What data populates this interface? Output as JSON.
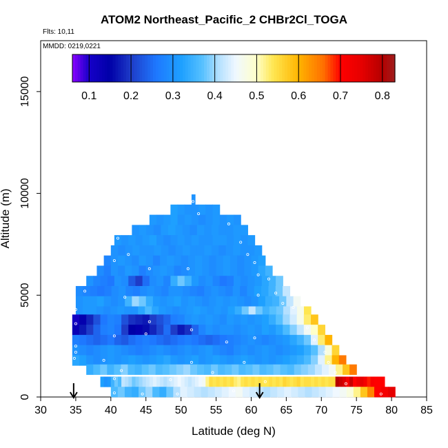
{
  "chart_data": {
    "type": "heatmap",
    "title": "ATOM2 Northeast_Pacific_2 CHBr2Cl_TOGA",
    "flights_label": "Flts: 10,11",
    "dates_label": "MMDD: 0219,0221",
    "xlabel": "Latitude (deg N)",
    "ylabel": "Altitude (m)",
    "xlim": [
      30,
      85
    ],
    "ylim": [
      0,
      17500
    ],
    "x_ticks": [
      30,
      35,
      40,
      45,
      50,
      55,
      60,
      65,
      70,
      75,
      80,
      85
    ],
    "y_ticks": [
      0,
      5000,
      10000,
      15000
    ],
    "colorbar": {
      "range": [
        0.06,
        0.83
      ],
      "ticks": [
        0.1,
        0.2,
        0.3,
        0.4,
        0.5,
        0.6,
        0.7,
        0.8
      ],
      "colors": [
        {
          "v": 0.06,
          "c": "#8a00ff"
        },
        {
          "v": 0.1,
          "c": "#1600c8"
        },
        {
          "v": 0.15,
          "c": "#0000a8"
        },
        {
          "v": 0.2,
          "c": "#1e3cc8"
        },
        {
          "v": 0.26,
          "c": "#1e78ff"
        },
        {
          "v": 0.32,
          "c": "#1ea0ff"
        },
        {
          "v": 0.37,
          "c": "#56c0ff"
        },
        {
          "v": 0.41,
          "c": "#b4e0ff"
        },
        {
          "v": 0.45,
          "c": "#f0f8ff"
        },
        {
          "v": 0.5,
          "c": "#ffffc8"
        },
        {
          "v": 0.54,
          "c": "#ffe650"
        },
        {
          "v": 0.6,
          "c": "#ffb400"
        },
        {
          "v": 0.66,
          "c": "#ff6e00"
        },
        {
          "v": 0.7,
          "c": "#ff0000"
        },
        {
          "v": 0.75,
          "c": "#e60000"
        },
        {
          "v": 0.8,
          "c": "#b40000"
        },
        {
          "v": 0.83,
          "c": "#a01e1e"
        }
      ]
    },
    "bands": [
      {
        "alt": 9700,
        "lat0": 51.5,
        "lat1": 52,
        "v": [
          0.3
        ]
      },
      {
        "alt": 9200,
        "lat0": 48.5,
        "lat1": 55.5,
        "v": [
          0.32,
          0.31,
          0.3,
          0.3,
          0.31,
          0.3,
          0.31
        ]
      },
      {
        "alt": 8700,
        "lat0": 45.5,
        "lat1": 58.5,
        "v": [
          0.31,
          0.3,
          0.31,
          0.32,
          0.3,
          0.31,
          0.3,
          0.29,
          0.3,
          0.31,
          0.3,
          0.31,
          0.3
        ]
      },
      {
        "alt": 8200,
        "lat0": 43,
        "lat1": 59.5,
        "v": [
          0.3,
          0.31,
          0.3,
          0.29,
          0.31,
          0.32,
          0.31,
          0.3,
          0.29,
          0.31,
          0.3,
          0.31,
          0.3,
          0.3,
          0.31,
          0.31
        ]
      },
      {
        "alt": 7700,
        "lat0": 40.5,
        "lat1": 60.5,
        "v": [
          0.31,
          0.3,
          0.31,
          0.3,
          0.31,
          0.32,
          0.3,
          0.29,
          0.3,
          0.31,
          0.3,
          0.31,
          0.3,
          0.3,
          0.31,
          0.31,
          0.3,
          0.31,
          0.3,
          0.31
        ]
      },
      {
        "alt": 7200,
        "lat0": 40,
        "lat1": 61.5,
        "v": [
          0.3,
          0.29,
          0.3,
          0.31,
          0.3,
          0.3,
          0.31,
          0.3,
          0.29,
          0.3,
          0.31,
          0.3,
          0.3,
          0.31,
          0.3,
          0.29,
          0.3,
          0.31,
          0.3,
          0.3,
          0.31
        ]
      },
      {
        "alt": 6700,
        "lat0": 39,
        "lat1": 62,
        "v": [
          0.28,
          0.3,
          0.31,
          0.3,
          0.29,
          0.31,
          0.3,
          0.28,
          0.3,
          0.31,
          0.3,
          0.29,
          0.3,
          0.31,
          0.3,
          0.29,
          0.3,
          0.31,
          0.3,
          0.29,
          0.3,
          0.31,
          0.32
        ]
      },
      {
        "alt": 6200,
        "lat0": 38,
        "lat1": 63,
        "v": [
          0.29,
          0.27,
          0.3,
          0.29,
          0.31,
          0.3,
          0.27,
          0.29,
          0.3,
          0.31,
          0.3,
          0.28,
          0.29,
          0.3,
          0.31,
          0.3,
          0.29,
          0.3,
          0.31,
          0.3,
          0.29,
          0.3,
          0.31,
          0.33,
          0.35
        ]
      },
      {
        "alt": 5700,
        "lat0": 36.5,
        "lat1": 64.5,
        "v": [
          0.3,
          0.28,
          0.27,
          0.26,
          0.3,
          0.29,
          0.23,
          0.2,
          0.25,
          0.29,
          0.3,
          0.28,
          0.34,
          0.38,
          0.35,
          0.31,
          0.29,
          0.3,
          0.28,
          0.26,
          0.27,
          0.3,
          0.29,
          0.3,
          0.31,
          0.33,
          0.35,
          0.38
        ]
      },
      {
        "alt": 5200,
        "lat0": 35,
        "lat1": 65.5,
        "v": [
          0.29,
          0.28,
          0.27,
          0.26,
          0.27,
          0.29,
          0.3,
          0.28,
          0.27,
          0.29,
          0.3,
          0.29,
          0.28,
          0.3,
          0.3,
          0.29,
          0.28,
          0.27,
          0.29,
          0.3,
          0.29,
          0.28,
          0.3,
          0.28,
          0.3,
          0.32,
          0.33,
          0.35,
          0.38,
          0.42
        ]
      },
      {
        "alt": 4700,
        "lat0": 35,
        "lat1": 67,
        "v": [
          0.3,
          0.31,
          0.31,
          0.32,
          0.3,
          0.29,
          0.3,
          0.35,
          0.4,
          0.38,
          0.34,
          0.31,
          0.3,
          0.31,
          0.32,
          0.3,
          0.31,
          0.3,
          0.29,
          0.3,
          0.31,
          0.3,
          0.31,
          0.3,
          0.29,
          0.3,
          0.32,
          0.34,
          0.35,
          0.38,
          0.42,
          0.46
        ]
      },
      {
        "alt": 4200,
        "lat0": 35,
        "lat1": 68.5,
        "v": [
          0.3,
          0.31,
          0.31,
          0.3,
          0.29,
          0.3,
          0.31,
          0.3,
          0.3,
          0.33,
          0.36,
          0.33,
          0.31,
          0.3,
          0.29,
          0.3,
          0.31,
          0.32,
          0.31,
          0.3,
          0.31,
          0.3,
          0.32,
          0.34,
          0.38,
          0.42,
          0.38,
          0.35,
          0.37,
          0.38,
          0.41,
          0.44,
          0.47,
          0.54
        ]
      },
      {
        "alt": 3800,
        "lat0": 34.5,
        "lat1": 69.5,
        "v": [
          0.11,
          0.14,
          0.18,
          0.22,
          0.26,
          0.28,
          0.27,
          0.22,
          0.19,
          0.18,
          0.17,
          0.2,
          0.22,
          0.24,
          0.27,
          0.28,
          0.3,
          0.31,
          0.3,
          0.31,
          0.3,
          0.29,
          0.31,
          0.3,
          0.31,
          0.3,
          0.31,
          0.32,
          0.34,
          0.37,
          0.4,
          0.43,
          0.47,
          0.53,
          0.58
        ]
      },
      {
        "alt": 3300,
        "lat0": 34.5,
        "lat1": 70.5,
        "v": [
          0.13,
          0.17,
          0.2,
          0.24,
          0.27,
          0.28,
          0.26,
          0.2,
          0.15,
          0.14,
          0.16,
          0.18,
          0.21,
          0.25,
          0.2,
          0.17,
          0.19,
          0.24,
          0.28,
          0.3,
          0.29,
          0.3,
          0.3,
          0.29,
          0.3,
          0.31,
          0.3,
          0.32,
          0.31,
          0.33,
          0.36,
          0.39,
          0.42,
          0.46,
          0.5,
          0.56
        ]
      },
      {
        "alt": 2800,
        "lat0": 34.5,
        "lat1": 71.5,
        "v": [
          0.27,
          0.26,
          0.25,
          0.24,
          0.25,
          0.26,
          0.24,
          0.23,
          0.25,
          0.26,
          0.27,
          0.26,
          0.25,
          0.24,
          0.25,
          0.26,
          0.27,
          0.26,
          0.25,
          0.24,
          0.25,
          0.26,
          0.27,
          0.28,
          0.29,
          0.3,
          0.29,
          0.28,
          0.29,
          0.3,
          0.31,
          0.33,
          0.35,
          0.38,
          0.44,
          0.53,
          0.6
        ]
      },
      {
        "alt": 2300,
        "lat0": 34.5,
        "lat1": 72.5,
        "v": [
          0.3,
          0.29,
          0.28,
          0.29,
          0.3,
          0.31,
          0.3,
          0.29,
          0.28,
          0.27,
          0.28,
          0.29,
          0.3,
          0.29,
          0.28,
          0.29,
          0.3,
          0.29,
          0.3,
          0.31,
          0.29,
          0.28,
          0.27,
          0.29,
          0.3,
          0.29,
          0.3,
          0.31,
          0.3,
          0.29,
          0.3,
          0.31,
          0.32,
          0.34,
          0.37,
          0.41,
          0.48,
          0.56
        ]
      },
      {
        "alt": 1800,
        "lat0": 34.5,
        "lat1": 73.5,
        "v": [
          0.33,
          0.32,
          0.3,
          0.29,
          0.3,
          0.31,
          0.3,
          0.31,
          0.32,
          0.31,
          0.3,
          0.31,
          0.32,
          0.33,
          0.31,
          0.3,
          0.31,
          0.32,
          0.3,
          0.31,
          0.32,
          0.31,
          0.3,
          0.31,
          0.32,
          0.31,
          0.3,
          0.31,
          0.3,
          0.31,
          0.32,
          0.33,
          0.34,
          0.36,
          0.39,
          0.44,
          0.52,
          0.6,
          0.65
        ]
      },
      {
        "alt": 1350,
        "lat0": 36.5,
        "lat1": 75,
        "v": [
          0.34,
          0.36,
          0.38,
          0.35,
          0.37,
          0.39,
          0.36,
          0.35,
          0.37,
          0.38,
          0.36,
          0.37,
          0.38,
          0.39,
          0.4,
          0.38,
          0.37,
          0.36,
          0.38,
          0.36,
          0.37,
          0.38,
          0.36,
          0.37,
          0.38,
          0.36,
          0.37,
          0.38,
          0.37,
          0.36,
          0.38,
          0.39,
          0.4,
          0.42,
          0.44,
          0.46,
          0.52,
          0.58,
          0.65
        ]
      },
      {
        "alt": 750,
        "lat0": 38.5,
        "lat1": 79,
        "v": [
          0.32,
          0.3,
          0.31,
          0.35,
          0.38,
          0.36,
          0.42,
          0.41,
          0.4,
          0.38,
          0.39,
          0.4,
          0.41,
          0.42,
          0.43,
          0.44,
          0.43,
          0.42,
          0.41,
          0.42,
          0.43,
          0.44,
          0.45,
          0.44,
          0.43,
          0.42,
          0.43,
          0.44,
          0.45,
          0.46,
          0.52,
          0.55,
          0.54,
          0.55,
          0.54,
          0.55,
          0.54,
          0.55,
          0.53,
          0.52,
          0.54,
          0.55,
          0.54,
          0.55,
          0.54,
          0.55,
          0.54,
          0.54,
          0.55,
          0.54,
          0.55,
          0.54,
          0.56,
          0.55,
          0.54,
          0.55,
          0.56,
          0.54,
          0.55,
          0.55,
          0.54,
          0.55,
          0.54,
          0.55,
          0.54,
          0.55,
          0.55,
          0.8,
          0.78,
          0.76,
          0.72,
          0.78,
          0.7,
          0.73,
          0.75,
          0.72,
          0.69,
          0.71,
          0.7,
          0.7,
          0.7
        ]
      },
      {
        "alt": 250,
        "lat0": 40,
        "lat1": 80.5,
        "v": [
          0.36,
          0.38,
          0.35,
          0.34,
          0.38,
          0.4,
          0.36,
          0.34,
          0.38,
          0.41,
          0.44,
          0.43,
          0.42,
          0.41,
          0.42,
          0.43,
          0.44,
          0.45,
          0.46,
          0.44,
          0.43,
          0.42,
          0.41,
          0.42,
          0.43,
          0.44,
          0.43,
          0.42,
          0.41,
          0.42,
          0.43,
          0.44,
          0.45,
          0.46,
          0.48,
          0.52,
          0.58,
          0.64,
          0.7,
          0.72,
          0.75
        ]
      }
    ],
    "samples": [
      {
        "lat": 51.7,
        "alt": 9600
      },
      {
        "lat": 52.5,
        "alt": 9000
      },
      {
        "lat": 56.8,
        "alt": 8500
      },
      {
        "lat": 41,
        "alt": 7800
      },
      {
        "lat": 58.5,
        "alt": 7600
      },
      {
        "lat": 42.5,
        "alt": 7000
      },
      {
        "lat": 59.5,
        "alt": 7000
      },
      {
        "lat": 40.5,
        "alt": 6700
      },
      {
        "lat": 60.5,
        "alt": 6600
      },
      {
        "lat": 45.5,
        "alt": 6300
      },
      {
        "lat": 51,
        "alt": 6300
      },
      {
        "lat": 61,
        "alt": 6000
      },
      {
        "lat": 62.5,
        "alt": 5800
      },
      {
        "lat": 36.3,
        "alt": 5200
      },
      {
        "lat": 63.5,
        "alt": 5100
      },
      {
        "lat": 42,
        "alt": 4900
      },
      {
        "lat": 61,
        "alt": 5000
      },
      {
        "lat": 64.5,
        "alt": 4600
      },
      {
        "lat": 35,
        "alt": 4300
      },
      {
        "lat": 66,
        "alt": 4400
      },
      {
        "lat": 45.5,
        "alt": 3700
      },
      {
        "lat": 35,
        "alt": 3600
      },
      {
        "lat": 68,
        "alt": 3400
      },
      {
        "lat": 51.5,
        "alt": 3300
      },
      {
        "lat": 45,
        "alt": 3100
      },
      {
        "lat": 40.5,
        "alt": 3000
      },
      {
        "lat": 60.5,
        "alt": 2900
      },
      {
        "lat": 69,
        "alt": 2800
      },
      {
        "lat": 35,
        "alt": 2500
      },
      {
        "lat": 56.5,
        "alt": 2700
      },
      {
        "lat": 35,
        "alt": 2200
      },
      {
        "lat": 70.5,
        "alt": 2200
      },
      {
        "lat": 34.8,
        "alt": 1900
      },
      {
        "lat": 39,
        "alt": 1800
      },
      {
        "lat": 51.5,
        "alt": 1700
      },
      {
        "lat": 59,
        "alt": 1700
      },
      {
        "lat": 71,
        "alt": 1700
      },
      {
        "lat": 41.5,
        "alt": 1300
      },
      {
        "lat": 54.5,
        "alt": 1200
      },
      {
        "lat": 72,
        "alt": 1200
      },
      {
        "lat": 40.5,
        "alt": 900
      },
      {
        "lat": 48.5,
        "alt": 850
      },
      {
        "lat": 62,
        "alt": 750
      },
      {
        "lat": 73.5,
        "alt": 650
      },
      {
        "lat": 40.5,
        "alt": 200
      },
      {
        "lat": 44.5,
        "alt": 150
      },
      {
        "lat": 49.5,
        "alt": 150
      },
      {
        "lat": 57.5,
        "alt": 300
      },
      {
        "lat": 78.5,
        "alt": 150
      }
    ],
    "arrows": [
      {
        "lat": 34.7
      },
      {
        "lat": 61.2
      }
    ],
    "grid": false
  }
}
